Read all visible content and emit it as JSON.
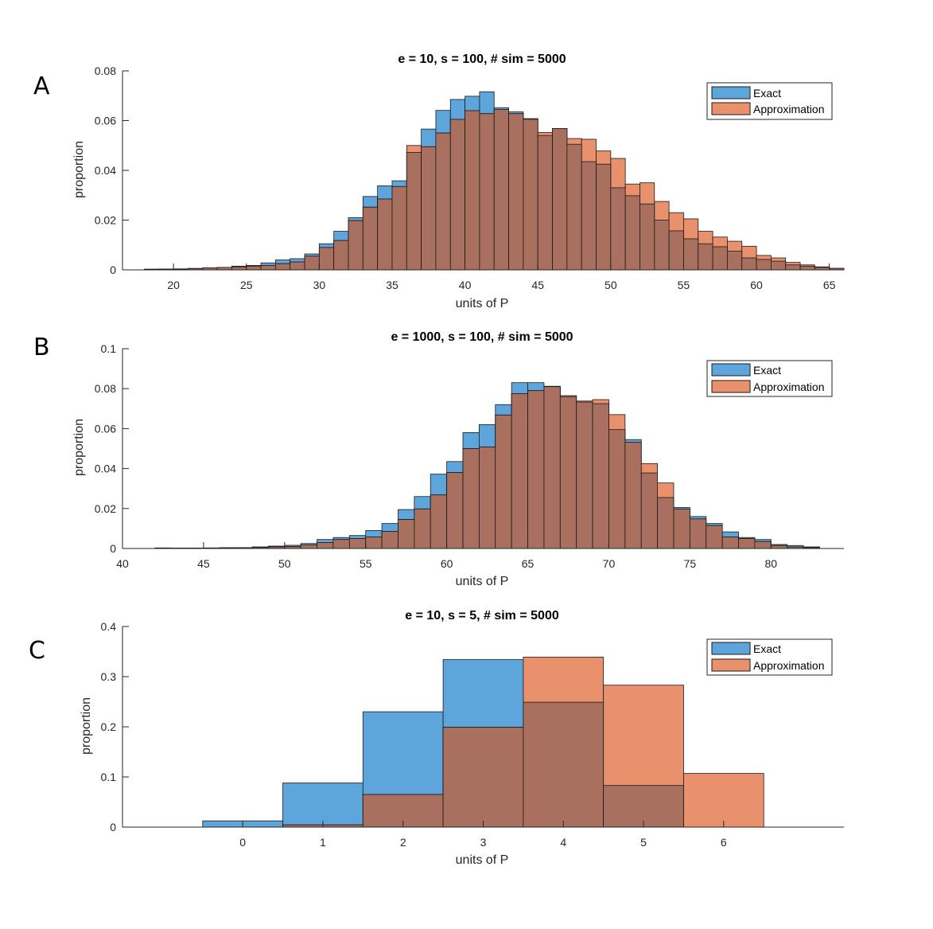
{
  "chart_data": [
    {
      "type": "bar",
      "panel": "A",
      "title": "e = 10, s = 100, # sim = 5000",
      "xlabel": "units of P",
      "ylabel": "proportion",
      "xlim": [
        16.5,
        66
      ],
      "ylim": [
        0,
        0.08
      ],
      "xticks": [
        20,
        25,
        30,
        35,
        40,
        45,
        50,
        55,
        60,
        65
      ],
      "yticks": [
        0,
        0.02,
        0.04,
        0.06,
        0.08
      ],
      "ytick_labels": [
        "0",
        "0.02",
        "0.04",
        "0.06",
        "0.08"
      ],
      "legend_position": "top-right",
      "bin_width": 1,
      "series": [
        {
          "name": "Exact",
          "color": "#5DA5DA",
          "x_start": 18,
          "values": [
            0.0003,
            0.0003,
            0.0004,
            0.0006,
            0.0008,
            0.001,
            0.0015,
            0.0018,
            0.0028,
            0.004,
            0.0045,
            0.0064,
            0.0105,
            0.0155,
            0.021,
            0.0295,
            0.0338,
            0.0358,
            0.0472,
            0.0566,
            0.0641,
            0.0685,
            0.0698,
            0.0716,
            0.0652,
            0.0635,
            0.0605,
            0.054,
            0.0568,
            0.0505,
            0.0435,
            0.0425,
            0.033,
            0.0298,
            0.0265,
            0.02,
            0.0157,
            0.0125,
            0.0105,
            0.0093,
            0.0075,
            0.0048,
            0.0042,
            0.0035,
            0.002,
            0.0015,
            0.001,
            0.0006
          ]
        },
        {
          "name": "Approximation",
          "color": "#E8916C",
          "x_start": 18,
          "values": [
            0.0002,
            0.0003,
            0.0003,
            0.0005,
            0.0008,
            0.001,
            0.0012,
            0.0015,
            0.0018,
            0.0025,
            0.0032,
            0.0055,
            0.009,
            0.0118,
            0.0198,
            0.0252,
            0.0285,
            0.0335,
            0.05,
            0.0495,
            0.055,
            0.0605,
            0.064,
            0.0628,
            0.0645,
            0.0628,
            0.0608,
            0.0552,
            0.0568,
            0.0528,
            0.0525,
            0.0478,
            0.0448,
            0.0345,
            0.035,
            0.0275,
            0.023,
            0.0205,
            0.0155,
            0.0132,
            0.0115,
            0.0095,
            0.0058,
            0.0048,
            0.003,
            0.002,
            0.0012,
            0.0006
          ]
        }
      ]
    },
    {
      "type": "bar",
      "panel": "B",
      "title": "e = 1000, s = 100, # sim = 5000",
      "xlabel": "units of P",
      "ylabel": "proportion",
      "xlim": [
        40,
        84.5
      ],
      "ylim": [
        0,
        0.1
      ],
      "xticks": [
        40,
        45,
        50,
        55,
        60,
        65,
        70,
        75,
        80
      ],
      "yticks": [
        0,
        0.02,
        0.04,
        0.06,
        0.08,
        0.1
      ],
      "ytick_labels": [
        "0",
        "0.02",
        "0.04",
        "0.06",
        "0.08",
        "0.1"
      ],
      "legend_position": "top-right",
      "bin_width": 1,
      "series": [
        {
          "name": "Exact",
          "color": "#5DA5DA",
          "x_start": 42,
          "values": [
            0.0003,
            0.0002,
            0.0002,
            0.0003,
            0.0004,
            0.0004,
            0.0008,
            0.0012,
            0.0016,
            0.0025,
            0.0045,
            0.0055,
            0.0065,
            0.009,
            0.0125,
            0.0195,
            0.026,
            0.0372,
            0.0435,
            0.058,
            0.062,
            0.072,
            0.083,
            0.083,
            0.081,
            0.076,
            0.0733,
            0.0725,
            0.0595,
            0.0545,
            0.0378,
            0.0255,
            0.0205,
            0.016,
            0.0125,
            0.0083,
            0.0055,
            0.0045,
            0.002,
            0.0015,
            0.0008
          ]
        },
        {
          "name": "Approximation",
          "color": "#E8916C",
          "x_start": 42,
          "values": [
            0.0002,
            0.0002,
            0.0002,
            0.0002,
            0.0003,
            0.0004,
            0.0005,
            0.0008,
            0.001,
            0.0018,
            0.003,
            0.0045,
            0.005,
            0.0058,
            0.0085,
            0.0145,
            0.0198,
            0.0268,
            0.038,
            0.05,
            0.0508,
            0.0668,
            0.0775,
            0.079,
            0.0812,
            0.0765,
            0.0738,
            0.0745,
            0.067,
            0.0532,
            0.0425,
            0.0328,
            0.0198,
            0.0148,
            0.0115,
            0.0058,
            0.005,
            0.0035,
            0.0015,
            0.0008,
            0.0004
          ]
        }
      ]
    },
    {
      "type": "bar",
      "panel": "C",
      "title": "e = 10, s = 5, # sim = 5000",
      "xlabel": "units of P",
      "ylabel": "proportion",
      "xlim": [
        -1.5,
        7.5
      ],
      "ylim": [
        0,
        0.4
      ],
      "xticks": [
        0,
        1,
        2,
        3,
        4,
        5,
        6
      ],
      "yticks": [
        0,
        0.1,
        0.2,
        0.3,
        0.4
      ],
      "ytick_labels": [
        "0",
        "0.1",
        "0.2",
        "0.3",
        "0.4"
      ],
      "legend_position": "top-right",
      "bin_width": 1,
      "series": [
        {
          "name": "Exact",
          "color": "#5DA5DA",
          "x_start": -0.5,
          "values": [
            0.0125,
            0.088,
            0.23,
            0.334,
            0.249,
            0.083,
            0
          ]
        },
        {
          "name": "Approximation",
          "color": "#E8916C",
          "x_start": -0.5,
          "values": [
            0,
            0.0045,
            0.065,
            0.199,
            0.339,
            0.283,
            0.107
          ]
        }
      ]
    }
  ]
}
